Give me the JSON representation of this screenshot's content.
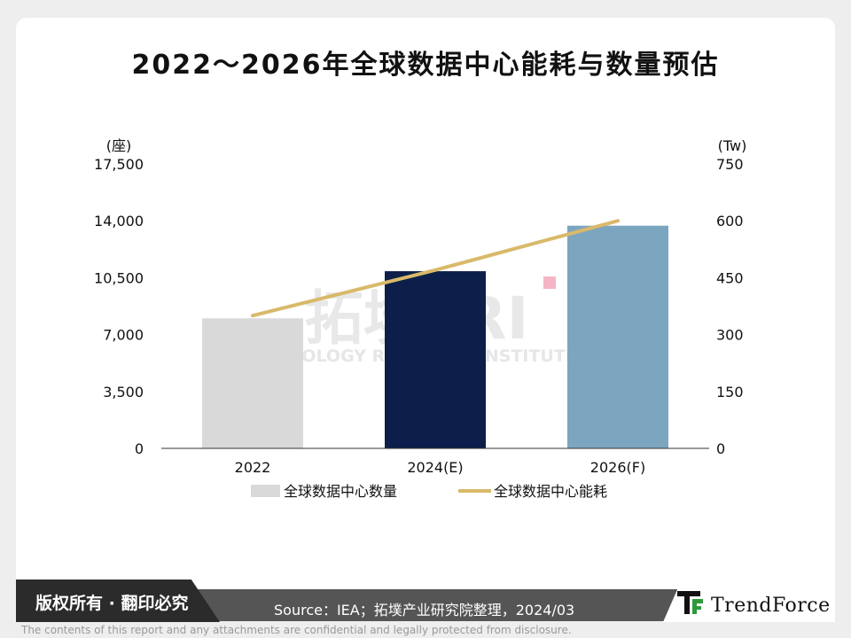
{
  "title": "2022～2026年全球数据中心能耗与数量预估",
  "watermark": {
    "text": "拓墣TRI",
    "subtext": "TOPOLOGY RESEARCH INSTITUTE"
  },
  "chart_data": {
    "type": "bar+line",
    "categories": [
      "2022",
      "2024(E)",
      "2026(F)"
    ],
    "y_left": {
      "unit": "(座)",
      "range": [
        0,
        17500
      ],
      "ticks": [
        "0",
        "3,500",
        "7,000",
        "10,500",
        "14,000",
        "17,500"
      ]
    },
    "y_right": {
      "unit": "(Tw)",
      "range": [
        0,
        750
      ],
      "ticks": [
        "0",
        "150",
        "300",
        "450",
        "600",
        "750"
      ]
    },
    "series": [
      {
        "name": "全球数据中心数量",
        "type": "bar",
        "axis": "left",
        "values": [
          8000,
          10900,
          13700
        ],
        "colors": [
          "#d9d9d9",
          "#0b1f4a",
          "#7ca6c0"
        ]
      },
      {
        "name": "全球数据中心能耗",
        "type": "line",
        "axis": "right",
        "values": [
          350,
          470,
          600
        ],
        "color": "#d9b96a"
      }
    ],
    "legend_position": "bottom",
    "grid": false
  },
  "footer": {
    "copyright": "版权所有 · 翻印必究",
    "source": "Source：IEA；拓墣产业研究院整理，2024/03",
    "brand": "TrendForce",
    "disclaimer": "The contents of this report and any attachments are confidential and legally protected from disclosure."
  }
}
